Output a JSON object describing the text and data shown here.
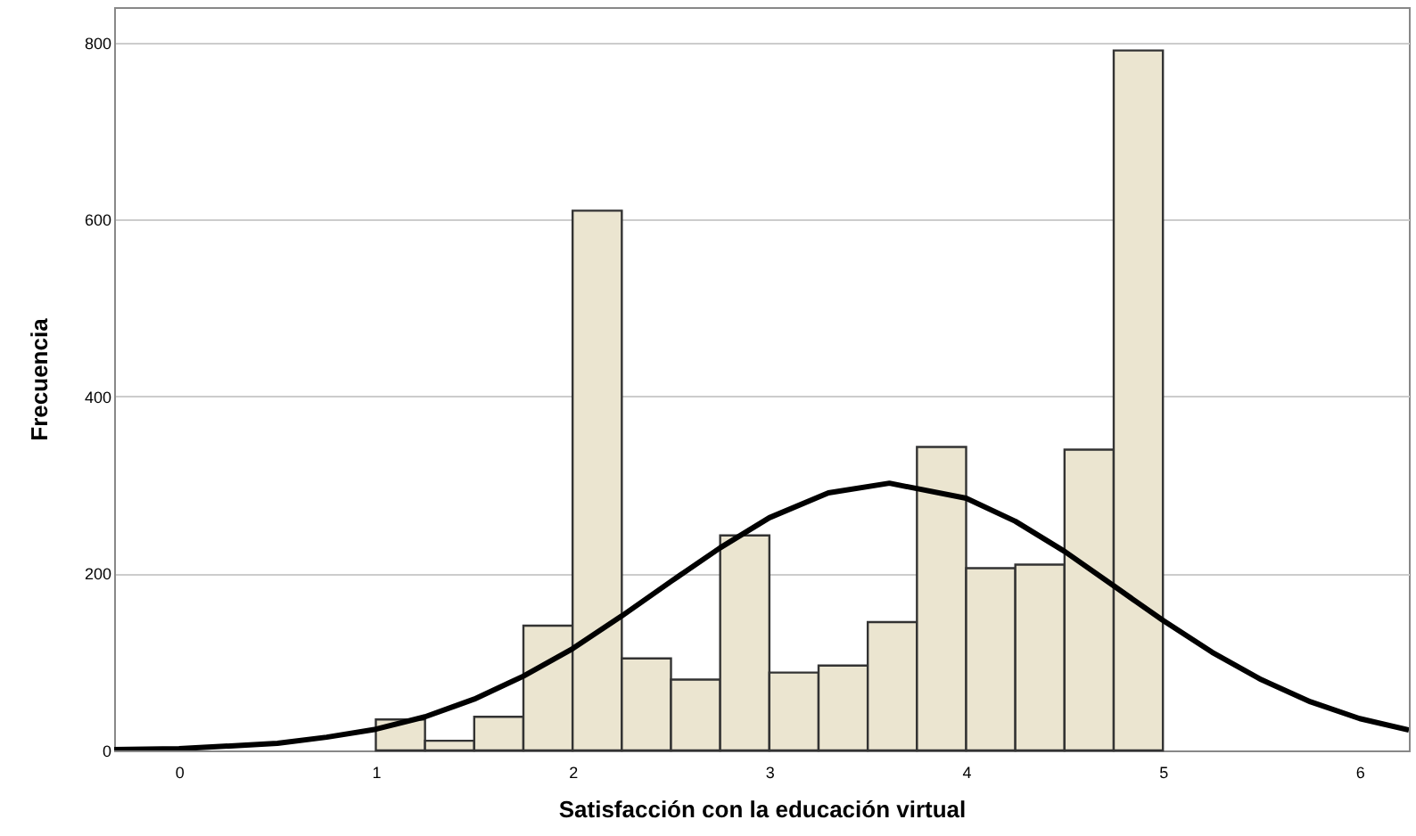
{
  "chart_data": {
    "type": "histogram",
    "xlabel": "Satisfacción con la educación virtual",
    "ylabel": "Frecuencia",
    "bins": [
      1.0,
      1.25,
      1.5,
      1.75,
      2.0,
      2.25,
      2.5,
      2.75,
      3.0,
      3.25,
      3.5,
      3.75,
      4.0,
      4.25,
      4.5,
      4.75,
      5.0
    ],
    "values": [
      35,
      11,
      38,
      141,
      610,
      104,
      80,
      243,
      88,
      96,
      145,
      343,
      206,
      210,
      340,
      791
    ],
    "color": "#ebe5d0",
    "series": [
      {
        "type": "line",
        "color": "#000000",
        "x": [
          -0.33,
          0,
          0.5,
          0.75,
          1.0,
          1.25,
          1.5,
          1.75,
          2.0,
          2.25,
          2.5,
          2.75,
          3.0,
          3.3,
          3.61,
          4.0,
          4.25,
          4.5,
          4.75,
          5.0,
          5.25,
          5.5,
          5.75,
          6.0,
          6.25
        ],
        "values": [
          1,
          2,
          8,
          15,
          24,
          38,
          58,
          84,
          115,
          152,
          191,
          229,
          263,
          291,
          302,
          285,
          259,
          225,
          186,
          147,
          111,
          80,
          55,
          36,
          23
        ]
      }
    ],
    "xlim": [
      -0.33,
      6.25
    ],
    "xticks": [
      0,
      1,
      2,
      3,
      4,
      5,
      6
    ],
    "ylim": [
      0,
      840
    ],
    "yticks": [
      0,
      200,
      400,
      600,
      800
    ],
    "grid": "y"
  }
}
